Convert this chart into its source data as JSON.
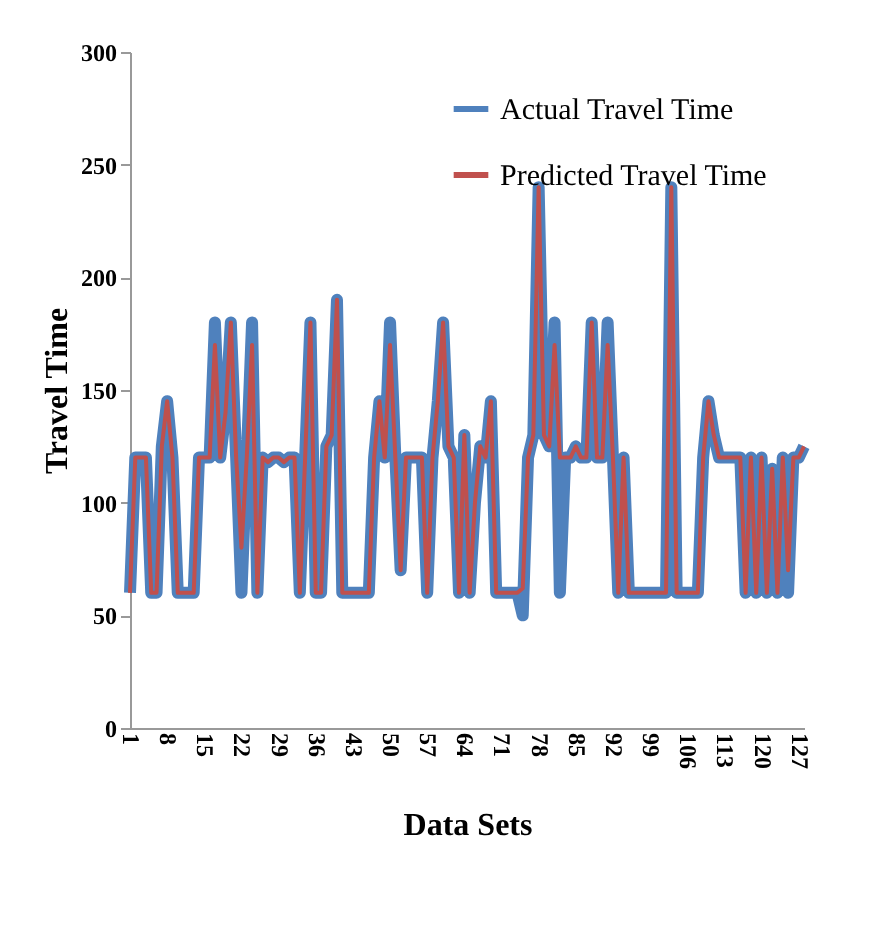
{
  "chart_data": {
    "type": "line",
    "xlabel": "Data Sets",
    "ylabel": "Travel Time",
    "x": [
      1,
      2,
      3,
      4,
      5,
      6,
      7,
      8,
      9,
      10,
      11,
      12,
      13,
      14,
      15,
      16,
      17,
      18,
      19,
      20,
      21,
      22,
      23,
      24,
      25,
      26,
      27,
      28,
      29,
      30,
      31,
      32,
      33,
      34,
      35,
      36,
      37,
      38,
      39,
      40,
      41,
      42,
      43,
      44,
      45,
      46,
      47,
      48,
      49,
      50,
      51,
      52,
      53,
      54,
      55,
      56,
      57,
      58,
      59,
      60,
      61,
      62,
      63,
      64,
      65,
      66,
      67,
      68,
      69,
      70,
      71,
      72,
      73,
      74,
      75,
      76,
      77,
      78,
      79,
      80,
      81,
      82,
      83,
      84,
      85,
      86,
      87,
      88,
      89,
      90,
      91,
      92,
      93,
      94,
      95,
      96,
      97,
      98,
      99,
      100,
      101,
      102,
      103,
      104,
      105,
      106,
      107,
      108,
      109,
      110,
      111,
      112,
      113,
      114,
      115,
      116,
      117,
      118,
      119,
      120,
      121,
      122,
      123,
      124,
      125,
      126,
      127,
      128
    ],
    "series": [
      {
        "name": "Actual Travel Time",
        "color": "#4f81bd",
        "values": [
          60,
          120,
          120,
          120,
          60,
          60,
          125,
          145,
          120,
          60,
          60,
          60,
          60,
          120,
          120,
          120,
          180,
          120,
          140,
          180,
          120,
          60,
          120,
          180,
          60,
          120,
          118,
          120,
          120,
          118,
          120,
          120,
          60,
          120,
          180,
          60,
          60,
          125,
          130,
          190,
          60,
          60,
          60,
          60,
          60,
          60,
          120,
          145,
          120,
          180,
          120,
          70,
          120,
          120,
          120,
          120,
          60,
          120,
          145,
          180,
          125,
          120,
          60,
          130,
          60,
          100,
          125,
          120,
          145,
          60,
          60,
          60,
          60,
          60,
          50,
          120,
          130,
          240,
          130,
          125,
          180,
          60,
          120,
          120,
          125,
          120,
          120,
          180,
          120,
          120,
          180,
          120,
          60,
          120,
          60,
          60,
          60,
          60,
          60,
          60,
          60,
          60,
          240,
          60,
          60,
          60,
          60,
          60,
          120,
          145,
          130,
          120,
          120,
          120,
          120,
          120,
          60,
          120,
          60,
          120,
          60,
          115,
          60,
          120,
          60,
          120,
          120,
          125
        ]
      },
      {
        "name": "Predicted Travel Time",
        "color": "#c0504d",
        "values": [
          60,
          120,
          120,
          120,
          60,
          60,
          125,
          145,
          120,
          60,
          60,
          60,
          60,
          120,
          120,
          120,
          170,
          120,
          140,
          180,
          120,
          80,
          120,
          170,
          60,
          120,
          118,
          120,
          120,
          118,
          120,
          120,
          60,
          120,
          180,
          60,
          60,
          125,
          130,
          190,
          60,
          60,
          60,
          60,
          60,
          60,
          120,
          145,
          120,
          170,
          120,
          70,
          120,
          120,
          120,
          120,
          60,
          120,
          145,
          180,
          125,
          120,
          60,
          130,
          60,
          100,
          125,
          120,
          145,
          60,
          60,
          60,
          60,
          60,
          62,
          120,
          130,
          240,
          130,
          125,
          170,
          120,
          120,
          120,
          125,
          120,
          120,
          180,
          120,
          120,
          170,
          120,
          60,
          120,
          60,
          60,
          60,
          60,
          60,
          60,
          60,
          60,
          240,
          60,
          60,
          60,
          60,
          60,
          120,
          145,
          130,
          120,
          120,
          120,
          120,
          120,
          60,
          120,
          60,
          120,
          60,
          115,
          60,
          120,
          70,
          120,
          120,
          125
        ]
      }
    ],
    "xlim": [
      1,
      128
    ],
    "xticks": [
      1,
      8,
      15,
      22,
      29,
      36,
      43,
      50,
      57,
      64,
      71,
      78,
      85,
      92,
      99,
      106,
      113,
      120,
      127
    ],
    "ylim": [
      0,
      300
    ],
    "yticks": [
      0,
      50,
      100,
      150,
      200,
      250,
      300
    ],
    "grid": false,
    "legend": "top right",
    "line_style": "solid",
    "marker": "none"
  }
}
